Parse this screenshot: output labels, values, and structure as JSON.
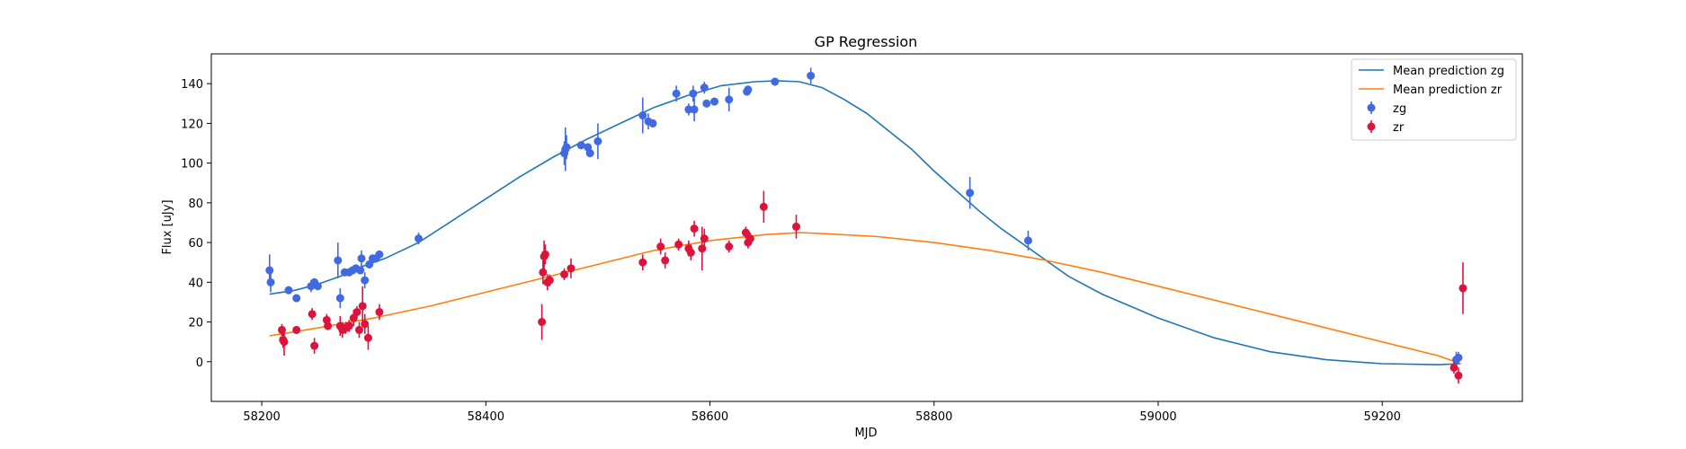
{
  "chart_data": {
    "type": "scatter",
    "title": "GP Regression",
    "xlabel": "MJD",
    "ylabel": "Flux [uJy]",
    "xlim": [
      58155,
      59325
    ],
    "ylim": [
      -20,
      155
    ],
    "xticks": [
      58200,
      58400,
      58600,
      58800,
      59000,
      59200
    ],
    "yticks": [
      0,
      20,
      40,
      60,
      80,
      100,
      120,
      140
    ],
    "legend_position": "top-right",
    "grid": false,
    "series": [
      {
        "name": "Mean prediction zg",
        "kind": "line",
        "color": "#1f77b4",
        "x": [
          58207,
          58230,
          58250,
          58270,
          58290,
          58310,
          58340,
          58370,
          58400,
          58430,
          58460,
          58490,
          58520,
          58550,
          58580,
          58610,
          58640,
          58660,
          58680,
          58700,
          58720,
          58740,
          58760,
          58780,
          58800,
          58820,
          58840,
          58860,
          58880,
          58900,
          58920,
          58950,
          59000,
          59050,
          59100,
          59150,
          59200,
          59250,
          59270
        ],
        "y": [
          34,
          36,
          39,
          43,
          48,
          52,
          60,
          71,
          82,
          93,
          103,
          112,
          120,
          128,
          134,
          139,
          141,
          141.5,
          141,
          138,
          132,
          125,
          116,
          107,
          96,
          86,
          76,
          67,
          59,
          51,
          43,
          34,
          22,
          12,
          5,
          1,
          -1,
          -1.5,
          -1
        ]
      },
      {
        "name": "Mean prediction zr",
        "kind": "line",
        "color": "#ff7f0e",
        "x": [
          58207,
          58250,
          58300,
          58350,
          58400,
          58450,
          58500,
          58550,
          58600,
          58650,
          58680,
          58700,
          58750,
          58800,
          58850,
          58900,
          58950,
          59000,
          59050,
          59100,
          59150,
          59200,
          59250,
          59270
        ],
        "y": [
          13,
          17,
          22,
          28,
          35,
          42,
          49,
          56,
          61,
          64,
          65,
          64.5,
          63,
          60,
          56,
          51,
          45,
          38,
          31,
          24,
          17,
          10,
          3,
          -1
        ]
      },
      {
        "name": "zg",
        "kind": "errorbar",
        "color": "#4169e1",
        "x": [
          58207,
          58208,
          58224,
          58231,
          58244,
          58247,
          58250,
          58268,
          58270,
          58274,
          58278,
          58281,
          58284,
          58288,
          58289,
          58292,
          58296,
          58299,
          58302,
          58305,
          58340,
          58470,
          58471,
          58472,
          58485,
          58491,
          58493,
          58500,
          58540,
          58545,
          58549,
          58570,
          58581,
          58585,
          58586,
          58595,
          58597,
          58604,
          58617,
          58633,
          58634,
          58658,
          58690,
          58832,
          58884,
          59266,
          59268
        ],
        "y": [
          46,
          40,
          36,
          32,
          38,
          40,
          38,
          51,
          32,
          45,
          45,
          46,
          47,
          46,
          52,
          41,
          49,
          52,
          52,
          54,
          62,
          105,
          107,
          108,
          109,
          108,
          105,
          111,
          124,
          121,
          120,
          135,
          127,
          135,
          127,
          138,
          130,
          131,
          132,
          136,
          137,
          141,
          144,
          85,
          61,
          1,
          2
        ],
        "yerr": [
          8,
          5,
          2,
          2,
          3,
          2,
          2,
          9,
          5,
          2,
          2,
          2,
          2,
          2,
          4,
          4,
          2,
          2,
          2,
          2,
          3,
          6,
          11,
          6,
          2,
          2,
          2,
          9,
          9,
          4,
          2,
          4,
          3,
          4,
          6,
          3,
          2,
          2,
          6,
          2,
          2,
          2,
          4,
          8,
          5,
          4,
          3
        ]
      },
      {
        "name": "zr",
        "kind": "errorbar",
        "color": "#dc143c",
        "x": [
          58218,
          58219,
          58220,
          58231,
          58245,
          58247,
          58258,
          58259,
          58270,
          58272,
          58275,
          58278,
          58282,
          58285,
          58287,
          58290,
          58292,
          58295,
          58305,
          58450,
          58451,
          58452,
          58453,
          58455,
          58457,
          58470,
          58476,
          58540,
          58556,
          58560,
          58572,
          58581,
          58583,
          58586,
          58593,
          58595,
          58617,
          58632,
          58634,
          58636,
          58648,
          58677,
          59264,
          59268,
          59272
        ],
        "y": [
          16,
          11,
          10,
          16,
          24,
          8,
          21,
          18,
          18,
          16,
          17,
          18,
          22,
          25,
          16,
          28,
          19,
          12,
          25,
          20,
          45,
          53,
          54,
          40,
          41,
          44,
          47,
          50,
          58,
          51,
          59,
          57,
          55,
          67,
          57,
          62,
          58,
          65,
          60,
          62,
          78,
          68,
          -3,
          -7,
          37
        ],
        "yerr": [
          3,
          4,
          7,
          2,
          3,
          4,
          3,
          2,
          5,
          4,
          3,
          3,
          4,
          3,
          4,
          10,
          5,
          6,
          4,
          9,
          6,
          8,
          5,
          4,
          3,
          3,
          5,
          4,
          4,
          4,
          3,
          4,
          4,
          4,
          11,
          5,
          3,
          3,
          3,
          3,
          8,
          6,
          3,
          4,
          13
        ]
      }
    ]
  }
}
